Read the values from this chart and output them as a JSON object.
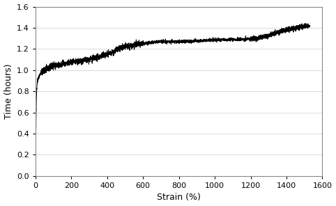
{
  "title": "",
  "xlabel": "Strain (%)",
  "ylabel": "Time (hours)",
  "xlim": [
    0,
    1600
  ],
  "ylim": [
    0,
    1.6
  ],
  "xticks": [
    0,
    200,
    400,
    600,
    800,
    1000,
    1200,
    1400,
    1600
  ],
  "yticks": [
    0.0,
    0.2,
    0.4,
    0.6,
    0.8,
    1.0,
    1.2,
    1.4,
    1.6
  ],
  "line_color": "#000000",
  "background_color": "#ffffff",
  "grid_color": "#cccccc",
  "figsize": [
    4.82,
    2.96
  ],
  "dpi": 100,
  "curve_keypoints_x": [
    0,
    2,
    5,
    10,
    20,
    30,
    50,
    100,
    200,
    300,
    400,
    500,
    600,
    700,
    800,
    1000,
    1200,
    1300,
    1400,
    1530
  ],
  "curve_keypoints_y": [
    0,
    0.35,
    0.72,
    0.88,
    0.94,
    0.97,
    1.0,
    1.04,
    1.07,
    1.1,
    1.15,
    1.22,
    1.25,
    1.27,
    1.27,
    1.285,
    1.295,
    1.33,
    1.38,
    1.42
  ]
}
